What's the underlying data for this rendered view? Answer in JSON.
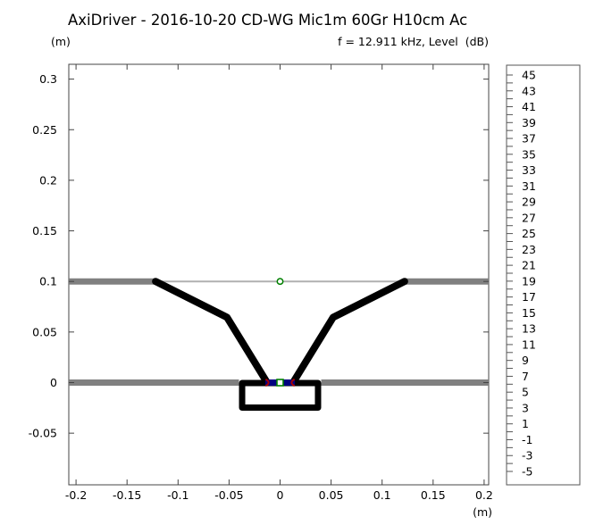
{
  "header": {
    "title": "AxiDriver - 2016-10-20 CD-WG Mic1m 60Gr H10cm Ac",
    "y_unit": "(m)",
    "info": "f = 12.911 kHz, Level  (dB)",
    "x_unit": "(m)"
  },
  "chart_data": {
    "type": "line",
    "title": "AxiDriver - 2016-10-20 CD-WG Mic1m 60Gr H10cm Ac",
    "subtitle": "f = 12.911 kHz, Level  (dB)",
    "frequency_khz": 12.911,
    "level_unit": "dB",
    "xlabel": "(m)",
    "ylabel": "(m)",
    "xlim": [
      -0.207,
      0.2045
    ],
    "ylim": [
      -0.101,
      0.3147
    ],
    "grid": false,
    "x_ticks": [
      -0.2,
      -0.15,
      -0.1,
      -0.05,
      0,
      0.05,
      0.1,
      0.15,
      0.2
    ],
    "x_tick_labels": [
      "-0.2",
      "-0.15",
      "-0.1",
      "-0.05",
      "0",
      "0.05",
      "0.1",
      "0.15",
      "0.2"
    ],
    "y_ticks": [
      0.3,
      0.25,
      0.2,
      0.15,
      0.1,
      0.05,
      0,
      -0.05
    ],
    "y_tick_labels": [
      "0.3",
      "0.25",
      "0.2",
      "0.15",
      "0.1",
      "0.05",
      "0",
      "-0.05"
    ],
    "legend": {
      "label": "Level (dB)",
      "position": "right",
      "max": 45,
      "min": -5,
      "label_step": 2,
      "tick_step": 1,
      "values": [
        "45",
        "43",
        "41",
        "39",
        "37",
        "35",
        "33",
        "31",
        "29",
        "27",
        "25",
        "23",
        "21",
        "19",
        "17",
        "15",
        "13",
        "11",
        "9",
        "7",
        "5",
        "3",
        "1",
        "-1",
        "-3",
        "-5"
      ]
    },
    "geometry": {
      "mouth_plane": {
        "y": 0.1,
        "x": [
          -0.122,
          0.122
        ],
        "color": "#b0b0b0",
        "width": 2
      },
      "baffle_top": {
        "y": 0.1,
        "segments": [
          [
            -0.207,
            -0.122
          ],
          [
            0.122,
            0.2045
          ]
        ],
        "color": "#808080",
        "width": 7
      },
      "baffle_bottom": {
        "y": 0,
        "segments": [
          [
            -0.207,
            -0.0403
          ],
          [
            0.0403,
            0.2045
          ]
        ],
        "color": "#808080",
        "width": 7
      },
      "waveguide_walls": [
        [
          [
            -0.122,
            0.1
          ],
          [
            -0.052,
            0.0645
          ],
          [
            -0.013,
            0.0005
          ]
        ],
        [
          [
            0.122,
            0.1
          ],
          [
            0.052,
            0.0645
          ],
          [
            0.013,
            0.0005
          ]
        ]
      ],
      "wall_color": "#000000",
      "wall_width": 8,
      "driver_box": {
        "x1": -0.0372,
        "x2": 0.0372,
        "y1": -0.0004,
        "y2": -0.0247,
        "stroke": 7,
        "color": "#000000"
      },
      "diaphragm": {
        "y": 0,
        "x": [
          -0.0145,
          0.0145
        ],
        "color": "#000080",
        "width": 7
      },
      "interface_marks": {
        "x": [
          -0.0115,
          0.0115
        ],
        "color": "#aa0000"
      },
      "source_marker": {
        "x": 0,
        "y": 0,
        "shape": "square",
        "color": "#008000"
      },
      "mic_marker": {
        "x": 0,
        "y": 0.1,
        "shape": "circle",
        "color": "#008000"
      }
    },
    "colors": {
      "frame": "#444444",
      "legend_frame": "#555555",
      "background": "#ffffff",
      "text": "#000000"
    }
  }
}
